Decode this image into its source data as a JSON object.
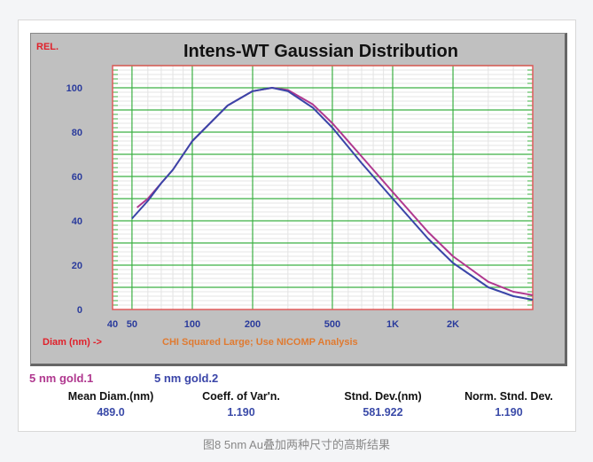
{
  "chart_data": {
    "type": "line",
    "title": "Intens-WT Gaussian Distribution",
    "ylabel": "REL.",
    "xlabel": "Diam (nm) ->",
    "note": "CHI Squared Large; Use NICOMP Analysis",
    "x_scale": "log",
    "xlim": [
      40,
      5000
    ],
    "ylim": [
      0,
      110
    ],
    "x_ticks": [
      {
        "v": 40,
        "label": "40"
      },
      {
        "v": 50,
        "label": "50"
      },
      {
        "v": 100,
        "label": "100"
      },
      {
        "v": 200,
        "label": "200"
      },
      {
        "v": 500,
        "label": "500"
      },
      {
        "v": 1000,
        "label": "1K"
      },
      {
        "v": 2000,
        "label": "2K"
      }
    ],
    "y_ticks": [
      0,
      20,
      40,
      60,
      80,
      100
    ],
    "grid": true,
    "series": [
      {
        "name": "5 nm gold.1",
        "color": "#b0388f",
        "points": [
          [
            53,
            46
          ],
          [
            60,
            50
          ],
          [
            70,
            57
          ],
          [
            80,
            63
          ],
          [
            100,
            76
          ],
          [
            150,
            92
          ],
          [
            200,
            98.5
          ],
          [
            250,
            100
          ],
          [
            300,
            99
          ],
          [
            400,
            92.5
          ],
          [
            500,
            84
          ],
          [
            700,
            69
          ],
          [
            1000,
            53
          ],
          [
            1500,
            35
          ],
          [
            2000,
            24
          ],
          [
            3000,
            12.5
          ],
          [
            4000,
            8
          ],
          [
            5000,
            6.5
          ]
        ]
      },
      {
        "name": "5 nm gold.2",
        "color": "#3a45a8",
        "points": [
          [
            50,
            41
          ],
          [
            60,
            49
          ],
          [
            70,
            57
          ],
          [
            80,
            63
          ],
          [
            100,
            76
          ],
          [
            150,
            92
          ],
          [
            200,
            98.5
          ],
          [
            250,
            100
          ],
          [
            300,
            98.5
          ],
          [
            400,
            91
          ],
          [
            500,
            82
          ],
          [
            700,
            66
          ],
          [
            1000,
            50
          ],
          [
            1500,
            32
          ],
          [
            2000,
            21
          ],
          [
            3000,
            10
          ],
          [
            4000,
            6
          ],
          [
            5000,
            4.4
          ]
        ]
      }
    ]
  },
  "stats": [
    {
      "label": "Mean Diam.(nm)",
      "value": "489.0"
    },
    {
      "label": "Coeff. of Var'n.",
      "value": "1.190"
    },
    {
      "label": "Stnd. Dev.(nm)",
      "value": "581.922"
    },
    {
      "label": "Norm. Stnd. Dev.",
      "value": "1.190"
    }
  ],
  "caption": "图8 5nm Au叠加两种尺寸的高斯结果",
  "colors": {
    "panel": "#c0c0c0",
    "grid_major": "#3cb043",
    "axis_label": "#2a3b9c",
    "red_label": "#e0202a",
    "note": "#e07a30"
  }
}
